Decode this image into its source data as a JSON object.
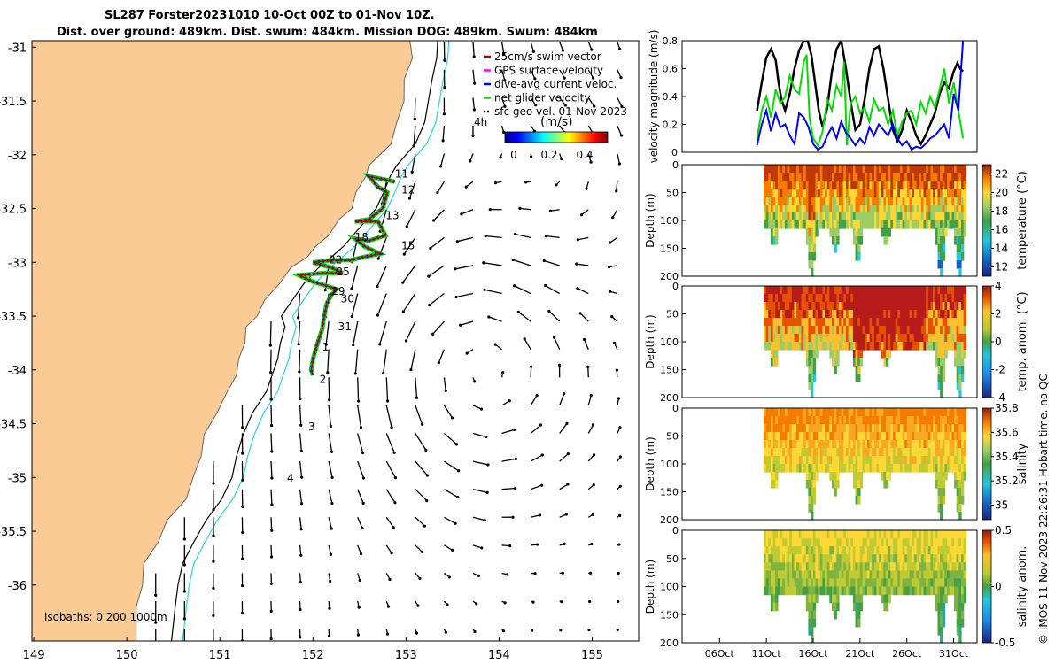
{
  "title_line1": "SL287 Forster20231010 10-Oct 00Z to 01-Nov 10Z.",
  "title_line2": "Dist. over ground: 489km. Dist. swum: 484km. Mission DOG: 489km. Swum: 484km",
  "credit": "© IMOS 11-Nov-2023 22:26:31 Hobart time. no QC",
  "colors": {
    "land": "#fbcb96",
    "coast": "#666666",
    "isobath_200": "#000000",
    "isobath_1000": "#27d6dc",
    "glider_track": "#b30000",
    "gps_velocity": "#ff00ff",
    "dive_current": "#0000ff",
    "net_velocity": "#00dd00"
  },
  "map": {
    "legend": {
      "items": [
        "25cm/s swim vector",
        "GPS surface velocity",
        "dive-avg current veloc.",
        "net glider velocity",
        "sfc geo vel. 01-Nov-2023"
      ],
      "colorbar_title": "(m/s)",
      "colorbar_ticks": [
        "0",
        "0.2",
        "0.4"
      ],
      "time_label": "4h"
    },
    "isobaths_label": "isobaths: 0   200  1000m",
    "lon_ticks": [
      "149",
      "150",
      "151",
      "152",
      "153",
      "154",
      "155"
    ],
    "lat_ticks": [
      "-31",
      "-31.5",
      "-32",
      "-32.5",
      "-33",
      "-33.5",
      "-34",
      "-34.5",
      "-35",
      "-35.5",
      "-36"
    ],
    "day_labels": [
      {
        "text": "1",
        "lon": 152.1,
        "lat": -33.82
      },
      {
        "text": "2",
        "lon": 152.07,
        "lat": -34.12
      },
      {
        "text": "3",
        "lon": 151.95,
        "lat": -34.56
      },
      {
        "text": "4",
        "lon": 151.72,
        "lat": -35.04
      },
      {
        "text": "11",
        "lon": 152.88,
        "lat": -32.21
      },
      {
        "text": "12",
        "lon": 152.95,
        "lat": -32.36
      },
      {
        "text": "13",
        "lon": 152.78,
        "lat": -32.6
      },
      {
        "text": "15",
        "lon": 152.95,
        "lat": -32.88
      },
      {
        "text": "18",
        "lon": 152.45,
        "lat": -32.8
      },
      {
        "text": "22",
        "lon": 152.17,
        "lat": -33.01
      },
      {
        "text": "25",
        "lon": 152.25,
        "lat": -33.12
      },
      {
        "text": "29",
        "lon": 152.2,
        "lat": -33.3
      },
      {
        "text": "30",
        "lon": 152.3,
        "lat": -33.37
      },
      {
        "text": "31",
        "lon": 152.27,
        "lat": -33.63
      }
    ]
  },
  "chart_data": [
    {
      "type": "line",
      "title": "",
      "ylabel": "velocity magnitude (m/s)",
      "ylim": [
        0,
        0.8
      ],
      "yticks": [
        "0",
        "0.2",
        "0.4",
        "0.6",
        "0.8"
      ],
      "x_axis": "day of Oct 2023",
      "series": [
        {
          "name": "sfc geo vel.",
          "color": "#000000",
          "x": [
            10,
            10.5,
            11,
            11.5,
            12,
            12.3,
            12.6,
            13,
            13.5,
            14,
            14.5,
            15,
            15.4,
            15.8,
            16.2,
            16.6,
            17,
            17.5,
            18,
            18.5,
            19,
            19.5,
            20,
            20.5,
            21,
            21.5,
            22,
            22.5,
            23,
            23.5,
            24,
            24.5,
            25,
            25.5,
            26,
            26.5,
            27,
            27.5,
            28,
            28.5,
            29,
            29.5,
            30,
            30.5,
            31,
            31.4,
            31.7,
            32
          ],
          "y": [
            0.3,
            0.5,
            0.68,
            0.74,
            0.66,
            0.5,
            0.38,
            0.3,
            0.42,
            0.6,
            0.73,
            0.8,
            0.8,
            0.7,
            0.5,
            0.3,
            0.18,
            0.32,
            0.58,
            0.74,
            0.8,
            0.6,
            0.36,
            0.16,
            0.2,
            0.38,
            0.6,
            0.74,
            0.76,
            0.6,
            0.38,
            0.16,
            0.08,
            0.16,
            0.3,
            0.22,
            0.12,
            0.06,
            0.12,
            0.2,
            0.28,
            0.42,
            0.5,
            0.46,
            0.58,
            0.64,
            0.6,
            0.58
          ]
        },
        {
          "name": "net glider velocity",
          "color": "#00dd00",
          "x": [
            10,
            10.5,
            11,
            11.5,
            12,
            12.5,
            13,
            13.5,
            14,
            14.5,
            15,
            15.3,
            15.6,
            16,
            16.5,
            17,
            17.5,
            18,
            18.5,
            19,
            19.3,
            19.6,
            20,
            20.5,
            21,
            21.5,
            22,
            22.5,
            23,
            23.5,
            24,
            24.5,
            25,
            25.5,
            26,
            26.5,
            27,
            27.5,
            28,
            28.5,
            29,
            29.5,
            30,
            30.5,
            31,
            31.5,
            32
          ],
          "y": [
            0.1,
            0.3,
            0.4,
            0.25,
            0.45,
            0.35,
            0.4,
            0.55,
            0.45,
            0.42,
            0.65,
            0.7,
            0.25,
            0.1,
            0.05,
            0.15,
            0.38,
            0.3,
            0.48,
            0.4,
            0.65,
            0.05,
            0.35,
            0.4,
            0.28,
            0.32,
            0.22,
            0.38,
            0.3,
            0.32,
            0.2,
            0.3,
            0.12,
            0.22,
            0.28,
            0.3,
            0.2,
            0.36,
            0.28,
            0.4,
            0.32,
            0.45,
            0.6,
            0.35,
            0.5,
            0.3,
            0.1
          ]
        },
        {
          "name": "dive-avg current veloc.",
          "color": "#0000ff",
          "x": [
            10,
            10.5,
            11,
            11.5,
            12,
            12.5,
            13,
            13.5,
            14,
            14.5,
            15,
            15.5,
            16,
            16.5,
            17,
            17.5,
            18,
            18.5,
            19,
            19.5,
            20,
            20.5,
            21,
            21.5,
            22,
            22.5,
            23,
            23.5,
            24,
            24.5,
            25,
            25.5,
            26,
            26.5,
            27,
            27.5,
            28,
            28.5,
            29,
            29.5,
            30,
            30.5,
            31,
            31.5,
            32
          ],
          "y": [
            0.05,
            0.2,
            0.3,
            0.15,
            0.28,
            0.18,
            0.2,
            0.12,
            0.06,
            0.28,
            0.25,
            0.18,
            0.06,
            0.02,
            0.04,
            0.12,
            0.18,
            0.1,
            0.22,
            0.14,
            0.1,
            0.05,
            0.1,
            0.06,
            0.18,
            0.12,
            0.2,
            0.16,
            0.12,
            0.2,
            0.1,
            0.05,
            0.08,
            0.02,
            0.04,
            0.03,
            0.06,
            0.1,
            0.12,
            0.16,
            0.2,
            0.1,
            0.42,
            0.3,
            0.8
          ]
        }
      ]
    },
    {
      "type": "heatmap",
      "variable": "temperature",
      "colorbar_label": "temperature (°C)",
      "colorbar_ticks": [
        "22",
        "20",
        "18",
        "16",
        "14",
        "12"
      ],
      "clim": [
        11,
        23
      ],
      "ylabel": "Depth (m)",
      "ylim": [
        200,
        0
      ],
      "yticks": [
        "0",
        "50",
        "100",
        "150",
        "200"
      ]
    },
    {
      "type": "heatmap",
      "variable": "temp. anom.",
      "colorbar_label": "temp. anom. (°C)",
      "colorbar_ticks": [
        "4",
        "2",
        "0",
        "-2",
        "-4"
      ],
      "clim": [
        -4,
        4
      ],
      "ylabel": "Depth (m)",
      "ylim": [
        200,
        0
      ],
      "yticks": [
        "0",
        "50",
        "100",
        "150",
        "200"
      ]
    },
    {
      "type": "heatmap",
      "variable": "salinity",
      "colorbar_label": "salinity",
      "colorbar_ticks": [
        "35.8",
        "35.6",
        "35.4",
        "35.2",
        "35"
      ],
      "clim": [
        34.88,
        35.8
      ],
      "ylabel": "Depth (m)",
      "ylim": [
        200,
        0
      ],
      "yticks": [
        "0",
        "50",
        "100",
        "150",
        "200"
      ]
    },
    {
      "type": "heatmap",
      "variable": "salinity anom.",
      "colorbar_label": "salinity anom.",
      "colorbar_ticks": [
        "0.5",
        "0",
        "-0.5"
      ],
      "clim": [
        -0.5,
        0.5
      ],
      "ylabel": "Depth (m)",
      "ylim": [
        200,
        0
      ],
      "yticks": [
        "0",
        "50",
        "100",
        "150",
        "200"
      ],
      "xticks": [
        "06Oct",
        "11Oct",
        "16Oct",
        "21Oct",
        "26Oct",
        "31Oct"
      ]
    }
  ]
}
